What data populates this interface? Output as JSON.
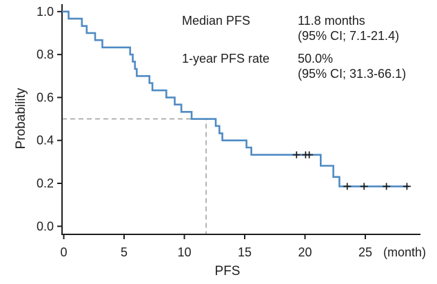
{
  "chart_data": {
    "type": "line",
    "subtype": "kaplan-meier-step-curve",
    "title": "",
    "xlabel": "PFS",
    "xlabel_unit": "(month)",
    "ylabel": "Probability",
    "xlim": [
      0,
      29.5
    ],
    "ylim": [
      0.0,
      1.0
    ],
    "x_ticks": [
      0,
      5,
      10,
      15,
      20,
      25
    ],
    "y_tick_labels": [
      "0.0",
      "0.2",
      "0.4",
      "0.6",
      "0.8",
      "1.0"
    ],
    "grid": false,
    "legend": null,
    "colors": {
      "curve": "#4f8bc4",
      "dashed_reference": "#9b9b9b",
      "axis_and_text": "#1f1f1f",
      "censor_marks": "#1a1a1a"
    },
    "series": [
      {
        "name": "PFS",
        "color": "#4f8bc4",
        "steps_time_probability": [
          [
            0,
            1.0
          ],
          [
            0.4,
            0.967
          ],
          [
            1.5,
            0.933
          ],
          [
            1.9,
            0.9
          ],
          [
            2.6,
            0.867
          ],
          [
            3.2,
            0.833
          ],
          [
            5.5,
            0.8
          ],
          [
            5.72,
            0.767
          ],
          [
            5.9,
            0.733
          ],
          [
            6.05,
            0.7
          ],
          [
            7.1,
            0.667
          ],
          [
            7.35,
            0.633
          ],
          [
            8.5,
            0.6
          ],
          [
            9.2,
            0.567
          ],
          [
            9.75,
            0.533
          ],
          [
            10.6,
            0.5
          ],
          [
            12.6,
            0.467
          ],
          [
            12.9,
            0.433
          ],
          [
            13.15,
            0.4
          ],
          [
            15.15,
            0.367
          ],
          [
            15.55,
            0.333
          ],
          [
            21.3,
            0.282
          ],
          [
            22.35,
            0.23
          ],
          [
            22.85,
            0.186
          ]
        ],
        "end_time": 28.6,
        "censor_marks_time_probability": [
          [
            19.3,
            0.333
          ],
          [
            20.05,
            0.333
          ],
          [
            20.35,
            0.333
          ],
          [
            23.5,
            0.186
          ],
          [
            24.9,
            0.186
          ],
          [
            26.75,
            0.186
          ],
          [
            28.45,
            0.186
          ]
        ]
      }
    ],
    "median_reference_line": {
      "t": 11.8,
      "p": 0.5
    },
    "annotations": {
      "row1_label": "Median PFS",
      "row1_value": "11.8 months",
      "row1_ci": "(95% CI; 7.1-21.4)",
      "row2_label": "1-year PFS rate",
      "row2_value": "50.0%",
      "row2_ci": "(95% CI; 31.3-66.1)"
    },
    "stats": {
      "median_pfs_months": 11.8,
      "median_pfs_ci_95": [
        7.1,
        21.4
      ],
      "one_year_pfs_rate_percent": 50.0,
      "one_year_pfs_rate_ci_95": [
        31.3,
        66.1
      ]
    }
  }
}
